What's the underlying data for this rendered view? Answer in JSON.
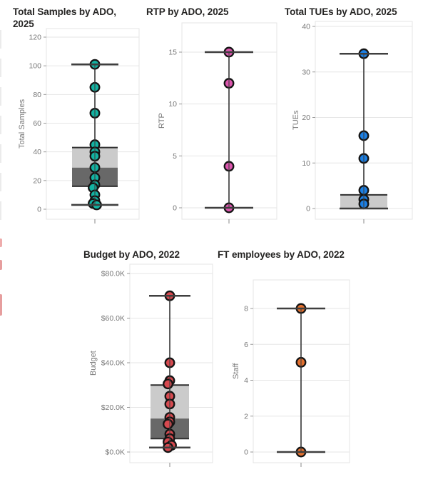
{
  "page": {
    "background": "#ffffff"
  },
  "chart_data": [
    {
      "type": "box-scatter",
      "title": "Total Samples by ADO, 2025",
      "ylabel": "Total Samples",
      "xlabel": "",
      "yticks": [
        0,
        20,
        40,
        60,
        80,
        100,
        120
      ],
      "ytick_labels": [
        "0",
        "20",
        "40",
        "60",
        "80",
        "100",
        "120"
      ],
      "ylim": [
        0,
        120
      ],
      "grid": true,
      "legend": "none",
      "points": [
        101,
        85,
        67,
        45,
        40,
        37,
        29,
        22,
        17,
        15,
        10,
        6,
        4,
        3
      ],
      "box": {
        "min": 3,
        "q1": 16,
        "median": 29,
        "q3": 43,
        "max": 101
      },
      "point_color": "#12b3a2"
    },
    {
      "type": "box-scatter",
      "title": "RTP by ADO, 2025",
      "ylabel": "RTP",
      "xlabel": "",
      "yticks": [
        0,
        5,
        10,
        15
      ],
      "ytick_labels": [
        "0",
        "5",
        "10",
        "15"
      ],
      "ylim": [
        0,
        15
      ],
      "grid": true,
      "legend": "none",
      "points": [
        15,
        12,
        4,
        0
      ],
      "box": {
        "min": 0,
        "q1": 0,
        "median": 0,
        "q3": 0,
        "max": 15
      },
      "point_color": "#dc56ae"
    },
    {
      "type": "box-scatter",
      "title": "Total TUEs by ADO, 2025",
      "ylabel": "TUEs",
      "xlabel": "",
      "yticks": [
        0,
        10,
        20,
        30,
        40
      ],
      "ytick_labels": [
        "0",
        "10",
        "20",
        "30",
        "40"
      ],
      "ylim": [
        0,
        40
      ],
      "grid": true,
      "legend": "none",
      "points": [
        34,
        16,
        11,
        4,
        2,
        1
      ],
      "box": {
        "min": 0,
        "q1": 0,
        "median": 0,
        "q3": 3,
        "max": 34
      },
      "point_color": "#1b7fe4"
    },
    {
      "type": "box-scatter",
      "title": "Budget by ADO, 2022",
      "ylabel": "Budget",
      "xlabel": "",
      "yticks": [
        0,
        20000,
        40000,
        60000,
        80000
      ],
      "ytick_labels": [
        "$0.0K",
        "$20.0K",
        "$40.0K",
        "$60.0K",
        "$80.0K"
      ],
      "ylim": [
        0,
        80000
      ],
      "grid": true,
      "legend": "none",
      "points": [
        70000,
        40000,
        32000,
        30500,
        25000,
        21500,
        15500,
        13500,
        12500,
        8000,
        6000,
        4500,
        3000,
        2000
      ],
      "box": {
        "min": 2000,
        "q1": 6000,
        "median": 15000,
        "q3": 30000,
        "max": 70000
      },
      "point_color": "#d6494f"
    },
    {
      "type": "box-scatter",
      "title": "FT employees by ADO, 2022",
      "ylabel": "Staff",
      "xlabel": "",
      "yticks": [
        0,
        2,
        4,
        6,
        8
      ],
      "ytick_labels": [
        "0",
        "2",
        "4",
        "6",
        "8"
      ],
      "ylim": [
        0,
        8
      ],
      "grid": true,
      "legend": "none",
      "points": [
        8,
        5,
        0
      ],
      "box": {
        "min": 0,
        "q1": 0,
        "median": 0,
        "q3": 0,
        "max": 8
      },
      "point_color": "#e2702f"
    }
  ],
  "style": {
    "box_light_fill": "#cbcbcb",
    "box_dark_fill": "#686868",
    "box_edge": "#2f2f2f",
    "whisker": "#3f3f3f",
    "grid_color": "#e6e6e6",
    "plot_border": "#e4e4e4",
    "tick_text": "#777777",
    "title_text": "#252423",
    "dot_stroke": "#141414"
  }
}
